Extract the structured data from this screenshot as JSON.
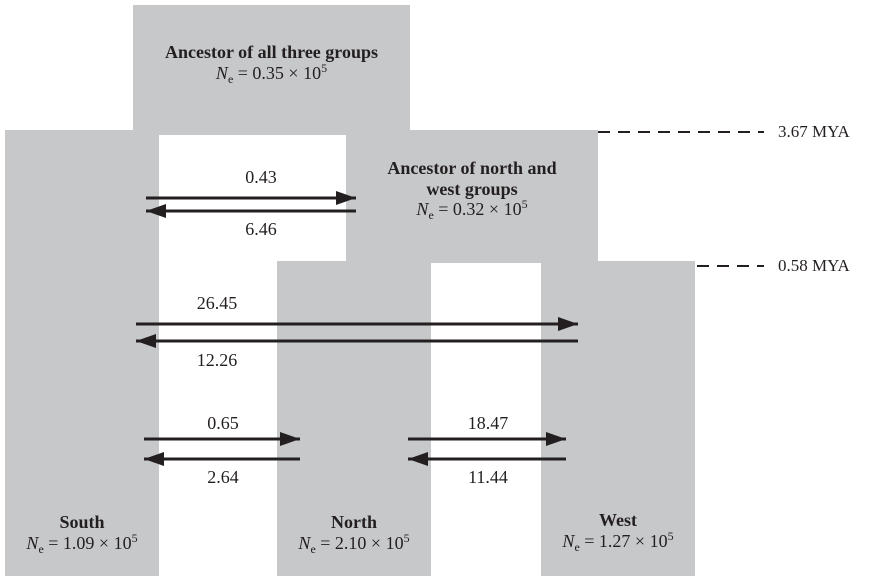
{
  "groups": {
    "ancestor_all": {
      "title": "Ancestor of all three groups",
      "ne_value": "0.35",
      "ne_exp": "5"
    },
    "ancestor_nw": {
      "title_line1": "Ancestor of north and",
      "title_line2": "west groups",
      "ne_value": "0.32",
      "ne_exp": "5"
    },
    "south": {
      "title": "South",
      "ne_value": "1.09",
      "ne_exp": "5"
    },
    "north": {
      "title": "North",
      "ne_value": "2.10",
      "ne_exp": "5"
    },
    "west": {
      "title": "West",
      "ne_value": "1.27",
      "ne_exp": "5"
    }
  },
  "ne_symbol": "N",
  "ne_subscript": "e",
  "ne_times": "× 10",
  "time_markers": [
    {
      "label": "3.67 MYA"
    },
    {
      "label": "0.58 MYA"
    }
  ],
  "migration_rates": {
    "south_to_ancestor_nw": "0.43",
    "ancestor_nw_to_south": "6.46",
    "south_to_west": "26.45",
    "west_to_south": "12.26",
    "south_to_north": "0.65",
    "north_to_south": "2.64",
    "north_to_west": "18.47",
    "west_to_north": "11.44"
  },
  "colors": {
    "block_fill": "#c7c8ca",
    "ink": "#231f20"
  }
}
